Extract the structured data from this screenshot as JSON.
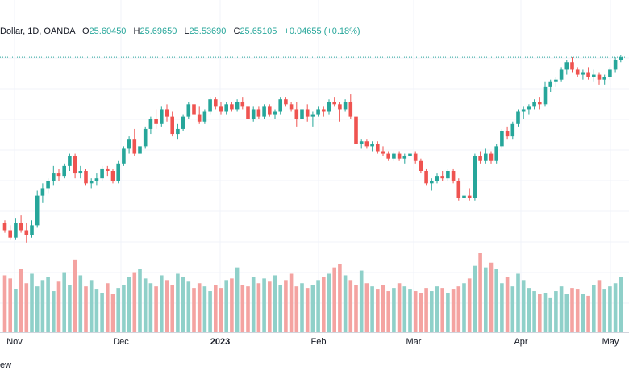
{
  "legend": {
    "symbol": "Dollar, 1D, OANDA",
    "open_label": "O",
    "open": "25.60450",
    "high_label": "H",
    "high": "25.69650",
    "low_label": "L",
    "low": "25.53690",
    "close_label": "C",
    "close": "25.65105",
    "change": "+0.04655 (+0.18%)"
  },
  "branding": "ew",
  "colors": {
    "up": "#26a69a",
    "down": "#ef5350",
    "up_volume": "#8fd0c9",
    "down_volume": "#f4a3a1",
    "grid": "#f0f3fa",
    "last_price_line": "#26a69a"
  },
  "chart_data": {
    "type": "candlestick",
    "interval": "1D",
    "x_tick_labels": [
      "Nov",
      "Dec",
      "2023",
      "Feb",
      "Mar",
      "Apr",
      "May"
    ],
    "y_range": [
      22.0,
      26.0
    ],
    "price_series": [
      [
        22.55,
        22.6,
        22.35,
        22.4
      ],
      [
        22.4,
        22.5,
        22.2,
        22.25
      ],
      [
        22.25,
        22.65,
        22.2,
        22.55
      ],
      [
        22.55,
        22.7,
        22.35,
        22.4
      ],
      [
        22.4,
        22.55,
        22.15,
        22.3
      ],
      [
        22.3,
        22.6,
        22.25,
        22.5
      ],
      [
        22.5,
        23.2,
        22.45,
        23.1
      ],
      [
        23.1,
        23.35,
        22.95,
        23.25
      ],
      [
        23.25,
        23.45,
        23.15,
        23.4
      ],
      [
        23.4,
        23.7,
        23.3,
        23.55
      ],
      [
        23.55,
        23.65,
        23.4,
        23.5
      ],
      [
        23.5,
        23.75,
        23.45,
        23.7
      ],
      [
        23.7,
        23.95,
        23.6,
        23.9
      ],
      [
        23.9,
        23.95,
        23.45,
        23.55
      ],
      [
        23.55,
        23.7,
        23.45,
        23.6
      ],
      [
        23.6,
        23.65,
        23.3,
        23.35
      ],
      [
        23.35,
        23.45,
        23.25,
        23.4
      ],
      [
        23.4,
        23.55,
        23.3,
        23.45
      ],
      [
        23.45,
        23.7,
        23.4,
        23.65
      ],
      [
        23.65,
        23.7,
        23.5,
        23.6
      ],
      [
        23.6,
        23.65,
        23.35,
        23.4
      ],
      [
        23.4,
        23.8,
        23.35,
        23.75
      ],
      [
        23.75,
        24.1,
        23.7,
        24.05
      ],
      [
        24.05,
        24.3,
        23.95,
        24.25
      ],
      [
        24.25,
        24.45,
        23.9,
        23.95
      ],
      [
        23.95,
        24.15,
        23.9,
        24.1
      ],
      [
        24.1,
        24.5,
        24.05,
        24.45
      ],
      [
        24.45,
        24.7,
        24.35,
        24.65
      ],
      [
        24.65,
        24.85,
        24.45,
        24.55
      ],
      [
        24.55,
        24.9,
        24.5,
        24.85
      ],
      [
        24.85,
        24.95,
        24.6,
        24.7
      ],
      [
        24.7,
        24.8,
        24.3,
        24.35
      ],
      [
        24.35,
        24.55,
        24.25,
        24.45
      ],
      [
        24.45,
        24.75,
        24.4,
        24.7
      ],
      [
        24.7,
        25.0,
        24.65,
        24.95
      ],
      [
        24.95,
        25.05,
        24.7,
        24.75
      ],
      [
        24.75,
        24.9,
        24.55,
        24.6
      ],
      [
        24.6,
        24.85,
        24.55,
        24.8
      ],
      [
        24.8,
        25.1,
        24.75,
        25.05
      ],
      [
        25.05,
        25.1,
        24.85,
        24.9
      ],
      [
        24.9,
        25.0,
        24.75,
        24.8
      ],
      [
        24.8,
        25.0,
        24.75,
        24.95
      ],
      [
        24.95,
        25.0,
        24.8,
        24.85
      ],
      [
        24.85,
        25.05,
        24.8,
        25.0
      ],
      [
        25.0,
        25.1,
        24.85,
        24.9
      ],
      [
        24.9,
        24.95,
        24.6,
        24.65
      ],
      [
        24.65,
        24.9,
        24.6,
        24.85
      ],
      [
        24.85,
        24.9,
        24.65,
        24.7
      ],
      [
        24.7,
        24.95,
        24.65,
        24.9
      ],
      [
        24.9,
        24.95,
        24.7,
        24.75
      ],
      [
        24.75,
        24.85,
        24.65,
        24.8
      ],
      [
        24.8,
        25.1,
        24.75,
        25.05
      ],
      [
        25.05,
        25.1,
        24.9,
        24.95
      ],
      [
        24.95,
        25.0,
        24.8,
        24.85
      ],
      [
        24.85,
        25.0,
        24.5,
        24.65
      ],
      [
        24.65,
        24.9,
        24.45,
        24.85
      ],
      [
        24.85,
        24.95,
        24.6,
        24.7
      ],
      [
        24.7,
        24.8,
        24.5,
        24.75
      ],
      [
        24.75,
        24.9,
        24.7,
        24.85
      ],
      [
        24.85,
        24.9,
        24.7,
        24.8
      ],
      [
        24.8,
        25.05,
        24.75,
        25.0
      ],
      [
        25.0,
        25.1,
        24.9,
        24.95
      ],
      [
        24.95,
        25.0,
        24.6,
        24.85
      ],
      [
        24.85,
        25.05,
        24.8,
        25.0
      ],
      [
        25.0,
        25.15,
        24.65,
        24.7
      ],
      [
        24.7,
        24.75,
        24.1,
        24.15
      ],
      [
        24.15,
        24.25,
        24.05,
        24.2
      ],
      [
        24.2,
        24.25,
        24.05,
        24.1
      ],
      [
        24.1,
        24.2,
        24.0,
        24.15
      ],
      [
        24.15,
        24.2,
        23.95,
        24.0
      ],
      [
        24.0,
        24.1,
        23.9,
        23.95
      ],
      [
        23.95,
        24.0,
        23.8,
        23.85
      ],
      [
        23.85,
        24.0,
        23.8,
        23.95
      ],
      [
        23.95,
        24.0,
        23.8,
        23.85
      ],
      [
        23.85,
        23.95,
        23.75,
        23.9
      ],
      [
        23.9,
        24.0,
        23.8,
        23.95
      ],
      [
        23.95,
        24.0,
        23.75,
        23.8
      ],
      [
        23.8,
        23.85,
        23.55,
        23.6
      ],
      [
        23.6,
        23.65,
        23.3,
        23.35
      ],
      [
        23.35,
        23.45,
        23.2,
        23.4
      ],
      [
        23.4,
        23.55,
        23.35,
        23.5
      ],
      [
        23.5,
        23.6,
        23.4,
        23.45
      ],
      [
        23.45,
        23.65,
        23.4,
        23.6
      ],
      [
        23.6,
        23.65,
        23.35,
        23.4
      ],
      [
        23.4,
        23.45,
        23.0,
        23.05
      ],
      [
        23.05,
        23.15,
        22.95,
        23.1
      ],
      [
        23.1,
        23.25,
        23.0,
        23.05
      ],
      [
        23.05,
        23.95,
        23.0,
        23.9
      ],
      [
        23.9,
        24.0,
        23.75,
        23.8
      ],
      [
        23.8,
        24.05,
        23.75,
        23.95
      ],
      [
        23.95,
        24.0,
        23.75,
        23.8
      ],
      [
        23.8,
        24.15,
        23.75,
        24.1
      ],
      [
        24.1,
        24.45,
        24.05,
        24.4
      ],
      [
        24.4,
        24.5,
        24.25,
        24.3
      ],
      [
        24.3,
        24.6,
        24.25,
        24.55
      ],
      [
        24.55,
        24.85,
        24.5,
        24.8
      ],
      [
        24.8,
        24.9,
        24.65,
        24.85
      ],
      [
        24.85,
        24.95,
        24.75,
        24.9
      ],
      [
        24.9,
        25.05,
        24.85,
        25.0
      ],
      [
        25.0,
        25.1,
        24.85,
        24.95
      ],
      [
        24.95,
        25.4,
        24.9,
        25.3
      ],
      [
        25.3,
        25.45,
        25.2,
        25.4
      ],
      [
        25.4,
        25.5,
        25.3,
        25.45
      ],
      [
        25.45,
        25.7,
        25.4,
        25.65
      ],
      [
        25.65,
        25.85,
        25.55,
        25.8
      ],
      [
        25.8,
        25.9,
        25.6,
        25.65
      ],
      [
        25.65,
        25.7,
        25.5,
        25.55
      ],
      [
        25.55,
        25.65,
        25.45,
        25.6
      ],
      [
        25.6,
        25.7,
        25.45,
        25.5
      ],
      [
        25.5,
        25.65,
        25.4,
        25.55
      ],
      [
        25.55,
        25.6,
        25.35,
        25.45
      ],
      [
        25.45,
        25.55,
        25.35,
        25.5
      ],
      [
        25.5,
        25.7,
        25.45,
        25.65
      ],
      [
        25.65,
        25.9,
        25.6,
        25.85
      ],
      [
        25.85,
        25.95,
        25.8,
        25.9
      ]
    ],
    "volume_series": [
      0.72,
      0.68,
      0.55,
      0.8,
      0.62,
      0.74,
      0.58,
      0.66,
      0.7,
      0.52,
      0.64,
      0.76,
      0.6,
      0.92,
      0.72,
      0.58,
      0.66,
      0.54,
      0.5,
      0.62,
      0.48,
      0.56,
      0.6,
      0.7,
      0.76,
      0.8,
      0.68,
      0.62,
      0.58,
      0.72,
      0.66,
      0.6,
      0.74,
      0.7,
      0.64,
      0.56,
      0.62,
      0.58,
      0.52,
      0.6,
      0.56,
      0.66,
      0.68,
      0.82,
      0.6,
      0.58,
      0.7,
      0.62,
      0.68,
      0.64,
      0.72,
      0.6,
      0.66,
      0.74,
      0.58,
      0.62,
      0.56,
      0.6,
      0.66,
      0.7,
      0.74,
      0.82,
      0.86,
      0.72,
      0.66,
      0.6,
      0.78,
      0.62,
      0.58,
      0.54,
      0.6,
      0.52,
      0.56,
      0.62,
      0.58,
      0.54,
      0.52,
      0.5,
      0.56,
      0.52,
      0.58,
      0.56,
      0.5,
      0.54,
      0.58,
      0.62,
      0.68,
      0.84,
      1.0,
      0.82,
      0.88,
      0.8,
      0.62,
      0.7,
      0.58,
      0.74,
      0.66,
      0.56,
      0.52,
      0.48,
      0.5,
      0.44,
      0.52,
      0.58,
      0.48,
      0.56,
      0.54,
      0.48,
      0.46,
      0.6,
      0.66,
      0.54,
      0.58,
      0.62,
      0.7
    ]
  }
}
